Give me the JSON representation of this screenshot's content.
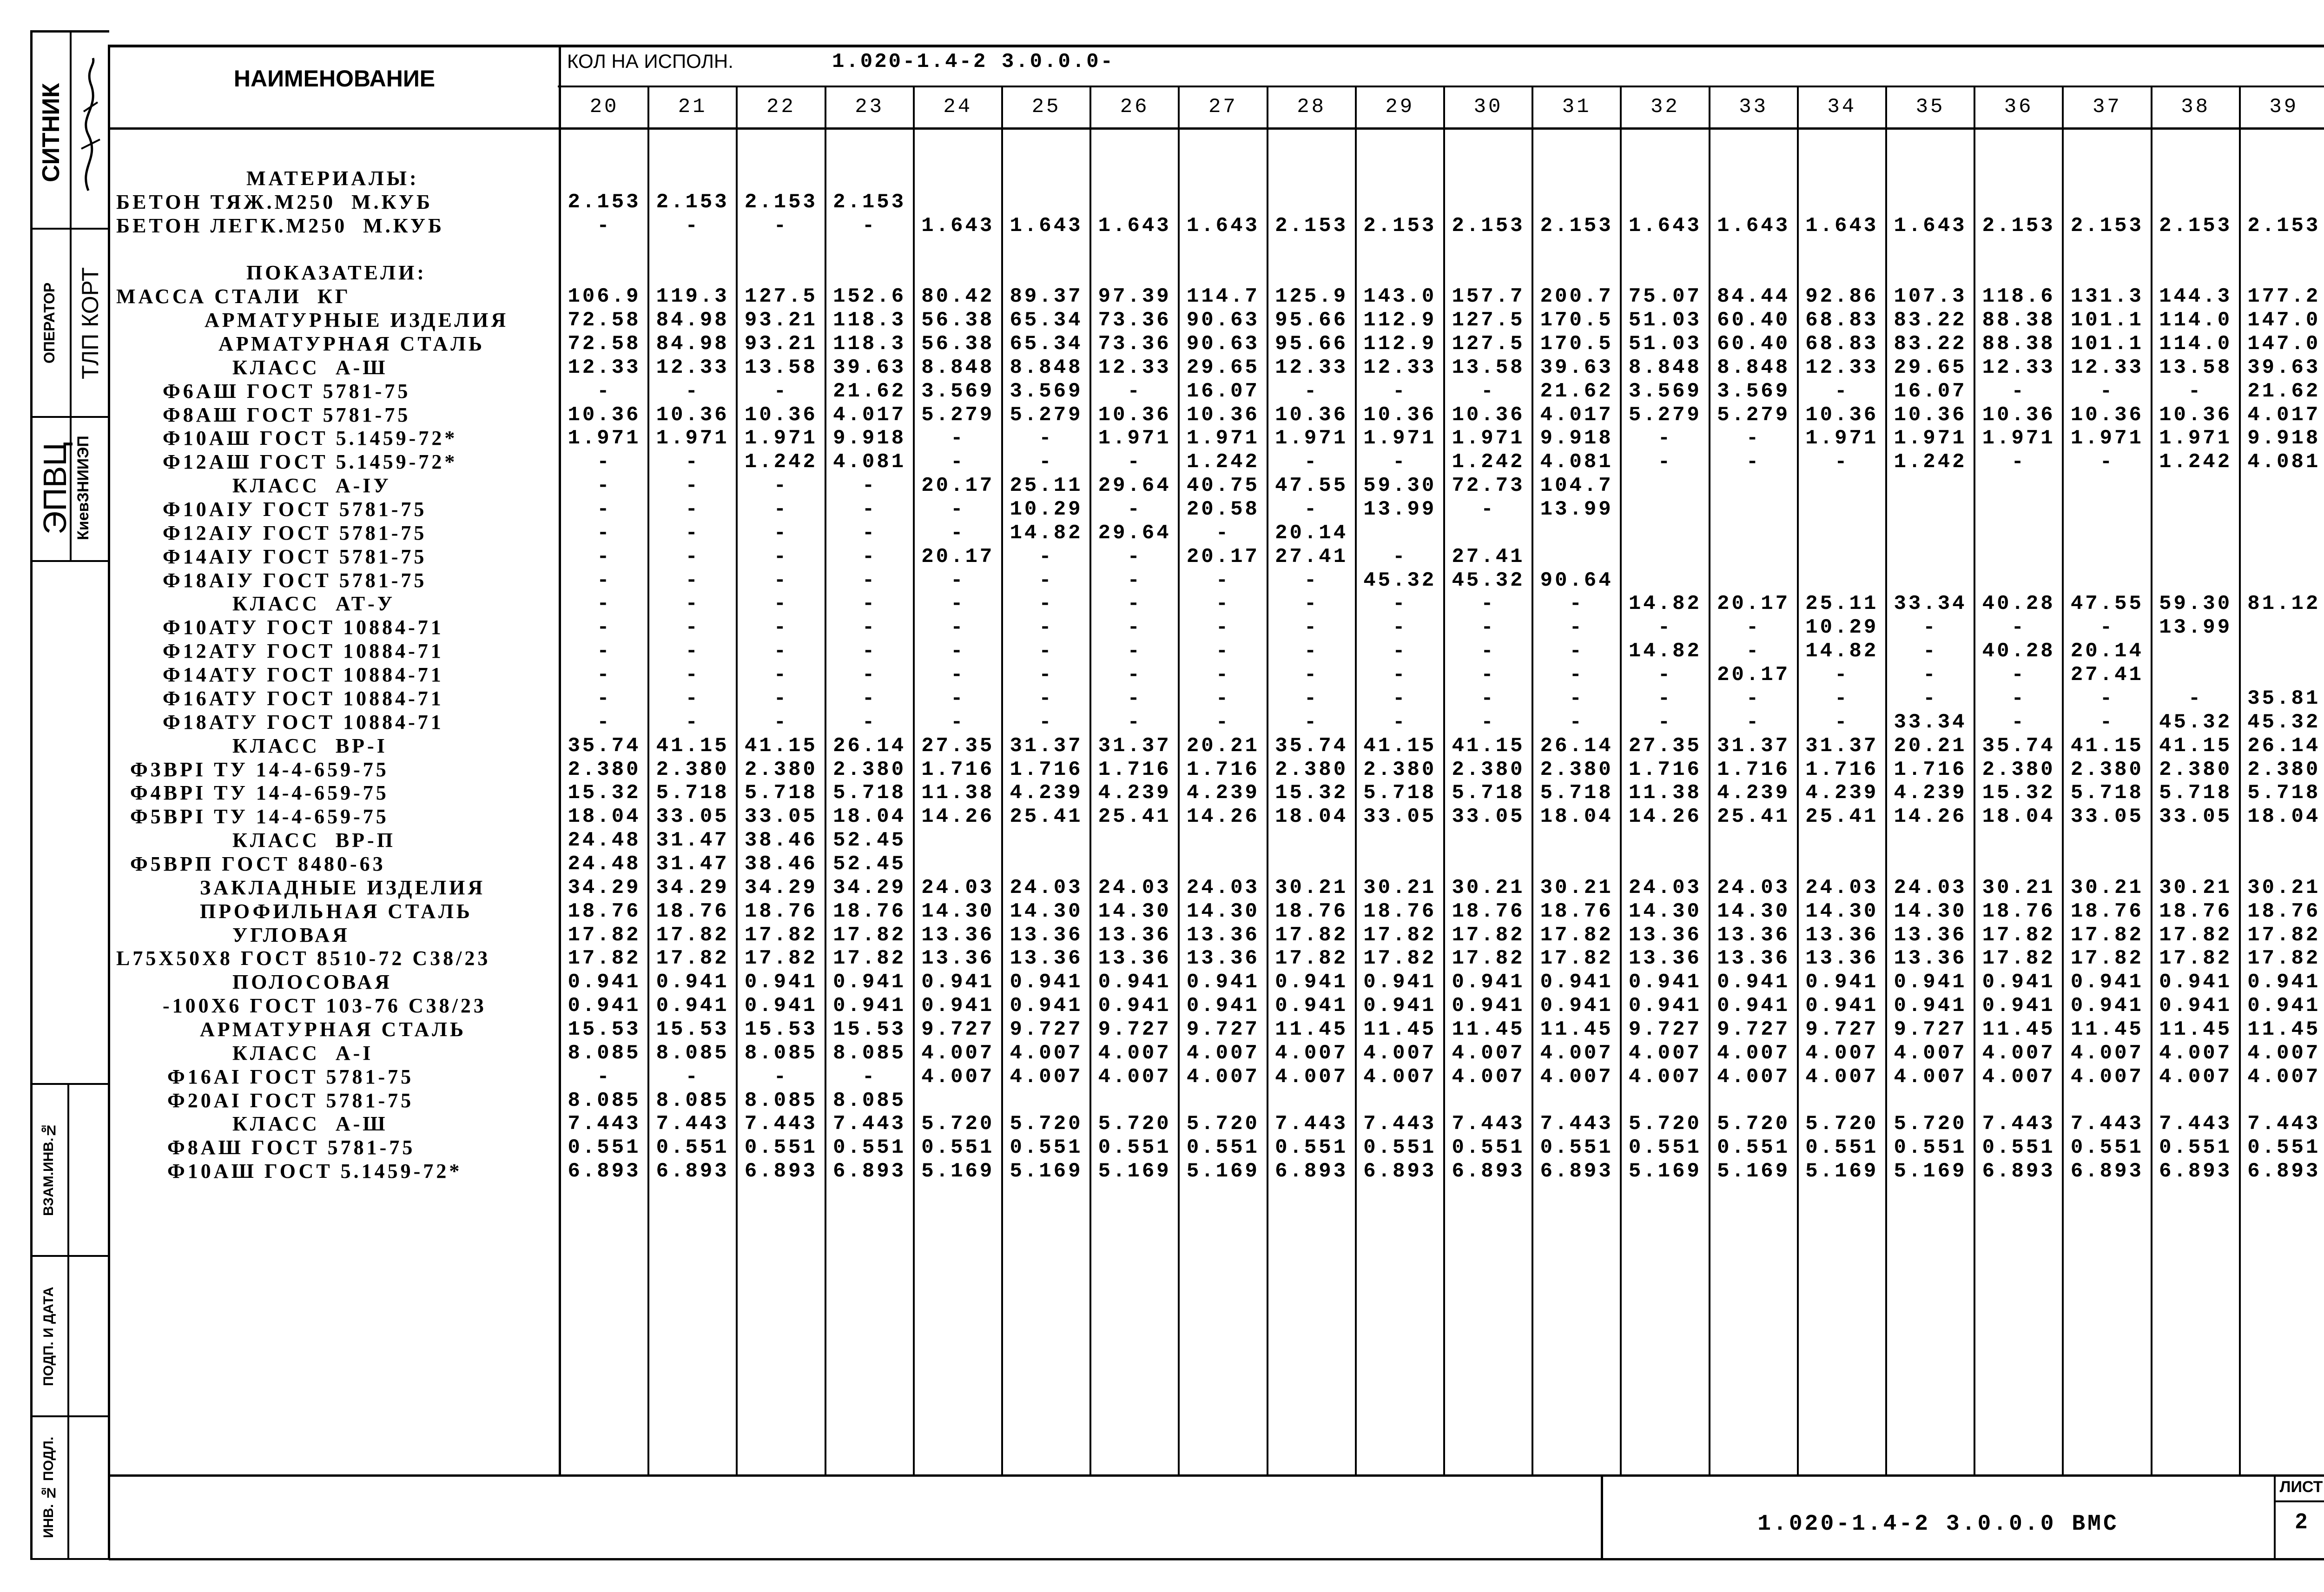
{
  "header": {
    "name_col": "НАИМЕНОВАНИЕ",
    "qty_label": "КОЛ НА ИСПОЛН.",
    "doc_code": "1.020-1.4-2 3.0.0.0-",
    "columns": [
      "20",
      "21",
      "22",
      "23",
      "24",
      "25",
      "26",
      "27",
      "28",
      "29",
      "30",
      "31",
      "32",
      "33",
      "34",
      "35",
      "36",
      "37",
      "38",
      "39"
    ]
  },
  "rows": [
    {
      "name": "МАТЕРИАЛЫ:",
      "values": []
    },
    {
      "name": "БЕТОН ТЯЖ.М250  М.КУБ",
      "values": [
        "2.153",
        "2.153",
        "2.153",
        "2.153",
        "",
        "",
        "",
        "",
        "",
        "",
        "",
        "",
        "",
        "",
        "",
        "",
        "",
        "",
        "",
        ""
      ]
    },
    {
      "name": "БЕТОН ЛЕГК.М250  М.КУБ",
      "values": [
        "-",
        "-",
        "-",
        "-",
        "1.643",
        "1.643",
        "1.643",
        "1.643",
        "2.153",
        "2.153",
        "2.153",
        "2.153",
        "1.643",
        "1.643",
        "1.643",
        "1.643",
        "2.153",
        "2.153",
        "2.153",
        "2.153"
      ]
    },
    {
      "name": "ПОКАЗАТЕЛИ:",
      "values": []
    },
    {
      "name": "МАССА СТАЛИ  КГ",
      "values": [
        "106.9",
        "119.3",
        "127.5",
        "152.6",
        "80.42",
        "89.37",
        "97.39",
        "114.7",
        "125.9",
        "143.0",
        "157.7",
        "200.7",
        "75.07",
        "84.44",
        "92.86",
        "107.3",
        "118.6",
        "131.3",
        "144.3",
        "177.2"
      ]
    },
    {
      "name": "АРМАТУРНЫЕ ИЗДЕЛИЯ",
      "values": [
        "72.58",
        "84.98",
        "93.21",
        "118.3",
        "56.38",
        "65.34",
        "73.36",
        "90.63",
        "95.66",
        "112.9",
        "127.5",
        "170.5",
        "51.03",
        "60.40",
        "68.83",
        "83.22",
        "88.38",
        "101.1",
        "114.0",
        "147.0"
      ]
    },
    {
      "name": "АРМАТУРНАЯ СТАЛЬ",
      "values": [
        "72.58",
        "84.98",
        "93.21",
        "118.3",
        "56.38",
        "65.34",
        "73.36",
        "90.63",
        "95.66",
        "112.9",
        "127.5",
        "170.5",
        "51.03",
        "60.40",
        "68.83",
        "83.22",
        "88.38",
        "101.1",
        "114.0",
        "147.0"
      ]
    },
    {
      "name": "КЛАСС  А-Ш",
      "values": [
        "12.33",
        "12.33",
        "13.58",
        "39.63",
        "8.848",
        "8.848",
        "12.33",
        "29.65",
        "12.33",
        "12.33",
        "13.58",
        "39.63",
        "8.848",
        "8.848",
        "12.33",
        "29.65",
        "12.33",
        "12.33",
        "13.58",
        "39.63"
      ]
    },
    {
      "name": "Ф6АШ ГОСТ 5781-75",
      "values": [
        "-",
        "-",
        "-",
        "21.62",
        "3.569",
        "3.569",
        "-",
        "16.07",
        "-",
        "-",
        "-",
        "21.62",
        "3.569",
        "3.569",
        "-",
        "16.07",
        "-",
        "-",
        "-",
        "21.62"
      ]
    },
    {
      "name": "Ф8АШ ГОСТ 5781-75",
      "values": [
        "10.36",
        "10.36",
        "10.36",
        "4.017",
        "5.279",
        "5.279",
        "10.36",
        "10.36",
        "10.36",
        "10.36",
        "10.36",
        "4.017",
        "5.279",
        "5.279",
        "10.36",
        "10.36",
        "10.36",
        "10.36",
        "10.36",
        "4.017"
      ]
    },
    {
      "name": "Ф10АШ ГОСТ 5.1459-72*",
      "values": [
        "1.971",
        "1.971",
        "1.971",
        "9.918",
        "-",
        "-",
        "1.971",
        "1.971",
        "1.971",
        "1.971",
        "1.971",
        "9.918",
        "-",
        "-",
        "1.971",
        "1.971",
        "1.971",
        "1.971",
        "1.971",
        "9.918"
      ]
    },
    {
      "name": "Ф12АШ ГОСТ 5.1459-72*",
      "values": [
        "-",
        "-",
        "1.242",
        "4.081",
        "-",
        "-",
        "-",
        "1.242",
        "-",
        "-",
        "1.242",
        "4.081",
        "-",
        "-",
        "-",
        "1.242",
        "-",
        "-",
        "1.242",
        "4.081"
      ]
    },
    {
      "name": "КЛАСС  А-IУ",
      "values": [
        "-",
        "-",
        "-",
        "-",
        "20.17",
        "25.11",
        "29.64",
        "40.75",
        "47.55",
        "59.30",
        "72.73",
        "104.7",
        "",
        "",
        "",
        "",
        "",
        "",
        "",
        ""
      ]
    },
    {
      "name": "Ф10АIУ ГОСТ 5781-75",
      "values": [
        "-",
        "-",
        "-",
        "-",
        "-",
        "10.29",
        "-",
        "20.58",
        "-",
        "13.99",
        "-",
        "13.99",
        "",
        "",
        "",
        "",
        "",
        "",
        "",
        ""
      ]
    },
    {
      "name": "Ф12АIУ ГОСТ 5781-75",
      "values": [
        "-",
        "-",
        "-",
        "-",
        "-",
        "14.82",
        "29.64",
        "-",
        "20.14",
        "",
        "",
        "",
        "",
        "",
        "",
        "",
        "",
        "",
        "",
        ""
      ]
    },
    {
      "name": "Ф14АIУ ГОСТ 5781-75",
      "values": [
        "-",
        "-",
        "-",
        "-",
        "20.17",
        "-",
        "-",
        "20.17",
        "27.41",
        "-",
        "27.41",
        "",
        "",
        "",
        "",
        "",
        "",
        "",
        "",
        ""
      ]
    },
    {
      "name": "Ф18АIУ ГОСТ 5781-75",
      "values": [
        "-",
        "-",
        "-",
        "-",
        "-",
        "-",
        "-",
        "-",
        "-",
        "45.32",
        "45.32",
        "90.64",
        "",
        "",
        "",
        "",
        "",
        "",
        "",
        ""
      ]
    },
    {
      "name": "КЛАСС  АТ-У",
      "values": [
        "-",
        "-",
        "-",
        "-",
        "-",
        "-",
        "-",
        "-",
        "-",
        "-",
        "-",
        "-",
        "14.82",
        "20.17",
        "25.11",
        "33.34",
        "40.28",
        "47.55",
        "59.30",
        "81.12"
      ]
    },
    {
      "name": "Ф10АТУ ГОСТ 10884-71",
      "values": [
        "-",
        "-",
        "-",
        "-",
        "-",
        "-",
        "-",
        "-",
        "-",
        "-",
        "-",
        "-",
        "-",
        "-",
        "10.29",
        "-",
        "-",
        "-",
        "13.99",
        ""
      ]
    },
    {
      "name": "Ф12АТУ ГОСТ 10884-71",
      "values": [
        "-",
        "-",
        "-",
        "-",
        "-",
        "-",
        "-",
        "-",
        "-",
        "-",
        "-",
        "-",
        "14.82",
        "-",
        "14.82",
        "-",
        "40.28",
        "20.14",
        "",
        ""
      ]
    },
    {
      "name": "Ф14АТУ ГОСТ 10884-71",
      "values": [
        "-",
        "-",
        "-",
        "-",
        "-",
        "-",
        "-",
        "-",
        "-",
        "-",
        "-",
        "-",
        "-",
        "20.17",
        "-",
        "-",
        "-",
        "27.41",
        "",
        ""
      ]
    },
    {
      "name": "Ф16АТУ ГОСТ 10884-71",
      "values": [
        "-",
        "-",
        "-",
        "-",
        "-",
        "-",
        "-",
        "-",
        "-",
        "-",
        "-",
        "-",
        "-",
        "-",
        "-",
        "-",
        "-",
        "-",
        "-",
        "35.81"
      ]
    },
    {
      "name": "Ф18АТУ ГОСТ 10884-71",
      "values": [
        "-",
        "-",
        "-",
        "-",
        "-",
        "-",
        "-",
        "-",
        "-",
        "-",
        "-",
        "-",
        "-",
        "-",
        "-",
        "33.34",
        "-",
        "-",
        "45.32",
        "45.32"
      ]
    },
    {
      "name": "КЛАСС  ВР-I",
      "values": [
        "35.74",
        "41.15",
        "41.15",
        "26.14",
        "27.35",
        "31.37",
        "31.37",
        "20.21",
        "35.74",
        "41.15",
        "41.15",
        "26.14",
        "27.35",
        "31.37",
        "31.37",
        "20.21",
        "35.74",
        "41.15",
        "41.15",
        "26.14"
      ]
    },
    {
      "name": "Ф3ВРI ТУ 14-4-659-75",
      "values": [
        "2.380",
        "2.380",
        "2.380",
        "2.380",
        "1.716",
        "1.716",
        "1.716",
        "1.716",
        "2.380",
        "2.380",
        "2.380",
        "2.380",
        "1.716",
        "1.716",
        "1.716",
        "1.716",
        "2.380",
        "2.380",
        "2.380",
        "2.380"
      ]
    },
    {
      "name": "Ф4ВРI ТУ 14-4-659-75",
      "values": [
        "15.32",
        "5.718",
        "5.718",
        "5.718",
        "11.38",
        "4.239",
        "4.239",
        "4.239",
        "15.32",
        "5.718",
        "5.718",
        "5.718",
        "11.38",
        "4.239",
        "4.239",
        "4.239",
        "15.32",
        "5.718",
        "5.718",
        "5.718"
      ]
    },
    {
      "name": "Ф5ВРI ТУ 14-4-659-75",
      "values": [
        "18.04",
        "33.05",
        "33.05",
        "18.04",
        "14.26",
        "25.41",
        "25.41",
        "14.26",
        "18.04",
        "33.05",
        "33.05",
        "18.04",
        "14.26",
        "25.41",
        "25.41",
        "14.26",
        "18.04",
        "33.05",
        "33.05",
        "18.04"
      ]
    },
    {
      "name": "КЛАСС  ВР-П",
      "values": [
        "24.48",
        "31.47",
        "38.46",
        "52.45",
        "",
        "",
        "",
        "",
        "",
        "",
        "",
        "",
        "",
        "",
        "",
        "",
        "",
        "",
        "",
        ""
      ]
    },
    {
      "name": "Ф5ВРП ГОСТ 8480-63",
      "values": [
        "24.48",
        "31.47",
        "38.46",
        "52.45",
        "",
        "",
        "",
        "",
        "",
        "",
        "",
        "",
        "",
        "",
        "",
        "",
        "",
        "",
        "",
        ""
      ]
    },
    {
      "name": "ЗАКЛАДНЫЕ ИЗДЕЛИЯ",
      "values": [
        "34.29",
        "34.29",
        "34.29",
        "34.29",
        "24.03",
        "24.03",
        "24.03",
        "24.03",
        "30.21",
        "30.21",
        "30.21",
        "30.21",
        "24.03",
        "24.03",
        "24.03",
        "24.03",
        "30.21",
        "30.21",
        "30.21",
        "30.21"
      ]
    },
    {
      "name": "ПРОФИЛЬНАЯ СТАЛЬ",
      "values": [
        "18.76",
        "18.76",
        "18.76",
        "18.76",
        "14.30",
        "14.30",
        "14.30",
        "14.30",
        "18.76",
        "18.76",
        "18.76",
        "18.76",
        "14.30",
        "14.30",
        "14.30",
        "14.30",
        "18.76",
        "18.76",
        "18.76",
        "18.76"
      ]
    },
    {
      "name": "УГЛОВАЯ",
      "values": [
        "17.82",
        "17.82",
        "17.82",
        "17.82",
        "13.36",
        "13.36",
        "13.36",
        "13.36",
        "17.82",
        "17.82",
        "17.82",
        "17.82",
        "13.36",
        "13.36",
        "13.36",
        "13.36",
        "17.82",
        "17.82",
        "17.82",
        "17.82"
      ]
    },
    {
      "name": "L75X50X8 ГОСТ 8510-72 С38/23",
      "values": [
        "17.82",
        "17.82",
        "17.82",
        "17.82",
        "13.36",
        "13.36",
        "13.36",
        "13.36",
        "17.82",
        "17.82",
        "17.82",
        "17.82",
        "13.36",
        "13.36",
        "13.36",
        "13.36",
        "17.82",
        "17.82",
        "17.82",
        "17.82"
      ]
    },
    {
      "name": "ПОЛОСОВАЯ",
      "values": [
        "0.941",
        "0.941",
        "0.941",
        "0.941",
        "0.941",
        "0.941",
        "0.941",
        "0.941",
        "0.941",
        "0.941",
        "0.941",
        "0.941",
        "0.941",
        "0.941",
        "0.941",
        "0.941",
        "0.941",
        "0.941",
        "0.941",
        "0.941"
      ]
    },
    {
      "name": "-100X6 ГОСТ 103-76 С38/23",
      "values": [
        "0.941",
        "0.941",
        "0.941",
        "0.941",
        "0.941",
        "0.941",
        "0.941",
        "0.941",
        "0.941",
        "0.941",
        "0.941",
        "0.941",
        "0.941",
        "0.941",
        "0.941",
        "0.941",
        "0.941",
        "0.941",
        "0.941",
        "0.941"
      ]
    },
    {
      "name": "АРМАТУРНАЯ СТАЛЬ",
      "values": [
        "15.53",
        "15.53",
        "15.53",
        "15.53",
        "9.727",
        "9.727",
        "9.727",
        "9.727",
        "11.45",
        "11.45",
        "11.45",
        "11.45",
        "9.727",
        "9.727",
        "9.727",
        "9.727",
        "11.45",
        "11.45",
        "11.45",
        "11.45"
      ]
    },
    {
      "name": "КЛАСС  А-I",
      "values": [
        "8.085",
        "8.085",
        "8.085",
        "8.085",
        "4.007",
        "4.007",
        "4.007",
        "4.007",
        "4.007",
        "4.007",
        "4.007",
        "4.007",
        "4.007",
        "4.007",
        "4.007",
        "4.007",
        "4.007",
        "4.007",
        "4.007",
        "4.007"
      ]
    },
    {
      "name": "Ф16АI ГОСТ 5781-75",
      "values": [
        "-",
        "-",
        "-",
        "-",
        "4.007",
        "4.007",
        "4.007",
        "4.007",
        "4.007",
        "4.007",
        "4.007",
        "4.007",
        "4.007",
        "4.007",
        "4.007",
        "4.007",
        "4.007",
        "4.007",
        "4.007",
        "4.007"
      ]
    },
    {
      "name": "Ф20АI ГОСТ 5781-75",
      "values": [
        "8.085",
        "8.085",
        "8.085",
        "8.085",
        "",
        "",
        "",
        "",
        "",
        "",
        "",
        "",
        "",
        "",
        "",
        "",
        "",
        "",
        "",
        ""
      ]
    },
    {
      "name": "КЛАСС  А-Ш",
      "values": [
        "7.443",
        "7.443",
        "7.443",
        "7.443",
        "5.720",
        "5.720",
        "5.720",
        "5.720",
        "7.443",
        "7.443",
        "7.443",
        "7.443",
        "5.720",
        "5.720",
        "5.720",
        "5.720",
        "7.443",
        "7.443",
        "7.443",
        "7.443"
      ]
    },
    {
      "name": "Ф8АШ ГОСТ 5781-75",
      "values": [
        "0.551",
        "0.551",
        "0.551",
        "0.551",
        "0.551",
        "0.551",
        "0.551",
        "0.551",
        "0.551",
        "0.551",
        "0.551",
        "0.551",
        "0.551",
        "0.551",
        "0.551",
        "0.551",
        "0.551",
        "0.551",
        "0.551",
        "0.551"
      ]
    },
    {
      "name": "Ф10АШ ГОСТ 5.1459-72*",
      "values": [
        "6.893",
        "6.893",
        "6.893",
        "6.893",
        "5.169",
        "5.169",
        "5.169",
        "5.169",
        "6.893",
        "6.893",
        "6.893",
        "6.893",
        "5.169",
        "5.169",
        "5.169",
        "5.169",
        "6.893",
        "6.893",
        "6.893",
        "6.893"
      ]
    }
  ],
  "stamp": {
    "org": "ЭПВЦ",
    "institute": "КиевЗНИИЭП",
    "operator_label": "ОПЕРАТОР",
    "operator": "ТЛП КОРТ",
    "person": "СИТНИК",
    "replace_inv": "ВЗАМ.ИНВ.№",
    "sign_date": "ПОДП. И ДАТА",
    "orig_inv": "ИНВ. № ПОДЛ."
  },
  "footer": {
    "doc_code": "1.020-1.4-2 3.0.0.0 ВМС",
    "sheet_label": "ЛИСТ",
    "sheet_number": "2"
  }
}
